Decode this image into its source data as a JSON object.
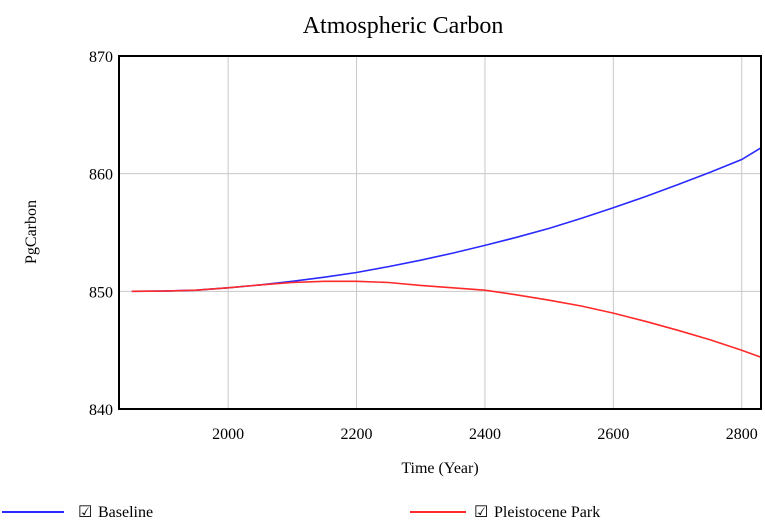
{
  "chart_data": {
    "type": "line",
    "title": "Atmospheric Carbon",
    "xlabel": "Time (Year)",
    "ylabel": "PgCarbon",
    "xlim": [
      1830,
      2830
    ],
    "ylim": [
      840,
      870
    ],
    "x_ticks": [
      2000,
      2200,
      2400,
      2600,
      2800
    ],
    "y_ticks": [
      840,
      850,
      860,
      870
    ],
    "grid": true,
    "legend_position": "bottom",
    "x": [
      1850,
      1900,
      1950,
      2000,
      2050,
      2100,
      2150,
      2200,
      2250,
      2300,
      2350,
      2400,
      2450,
      2500,
      2550,
      2600,
      2650,
      2700,
      2750,
      2800,
      2830
    ],
    "series": [
      {
        "name": "Baseline",
        "color": "#2a2aff",
        "values": [
          850.0,
          850.02,
          850.1,
          850.3,
          850.55,
          850.85,
          851.2,
          851.6,
          852.1,
          852.65,
          853.25,
          853.9,
          854.6,
          855.35,
          856.2,
          857.1,
          858.05,
          859.05,
          860.1,
          861.2,
          862.2
        ]
      },
      {
        "name": "Pleistocene Park",
        "color": "#ff2a2a",
        "values": [
          850.0,
          850.02,
          850.1,
          850.3,
          850.55,
          850.75,
          850.85,
          850.85,
          850.75,
          850.5,
          850.3,
          850.1,
          849.7,
          849.25,
          848.75,
          848.15,
          847.45,
          846.7,
          845.9,
          845.0,
          844.4
        ]
      }
    ],
    "legend": [
      {
        "label": "Baseline",
        "color": "#2a2aff",
        "checked": true
      },
      {
        "label": "Pleistocene Park",
        "color": "#ff2a2a",
        "checked": true
      }
    ],
    "checkbox_glyph": "☑"
  }
}
